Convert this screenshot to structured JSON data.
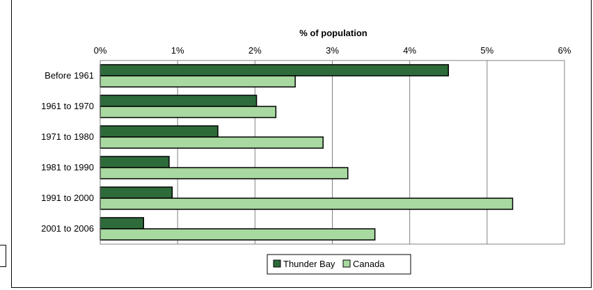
{
  "chart_data": {
    "type": "bar",
    "orientation": "horizontal",
    "title": "",
    "xlabel": "% of population",
    "ylabel": "",
    "categories": [
      "Before 1961",
      "1961 to 1970",
      "1971 to 1980",
      "1981 to 1990",
      "1991 to 2000",
      "2001 to 2006"
    ],
    "series": [
      {
        "name": "Thunder Bay",
        "color": "#2e6b3a",
        "values": [
          4.5,
          2.02,
          1.52,
          0.89,
          0.93,
          0.56
        ]
      },
      {
        "name": "Canada",
        "color": "#a8d9a0",
        "values": [
          2.52,
          2.27,
          2.88,
          3.2,
          5.33,
          3.55
        ]
      }
    ],
    "xlim": [
      0,
      6
    ],
    "xticks": [
      0,
      1,
      2,
      3,
      4,
      5,
      6
    ],
    "xtick_labels": [
      "0%",
      "1%",
      "2%",
      "3%",
      "4%",
      "5%",
      "6%"
    ],
    "grid": true,
    "legend_position": "bottom",
    "plot_background": "#ffffff"
  }
}
